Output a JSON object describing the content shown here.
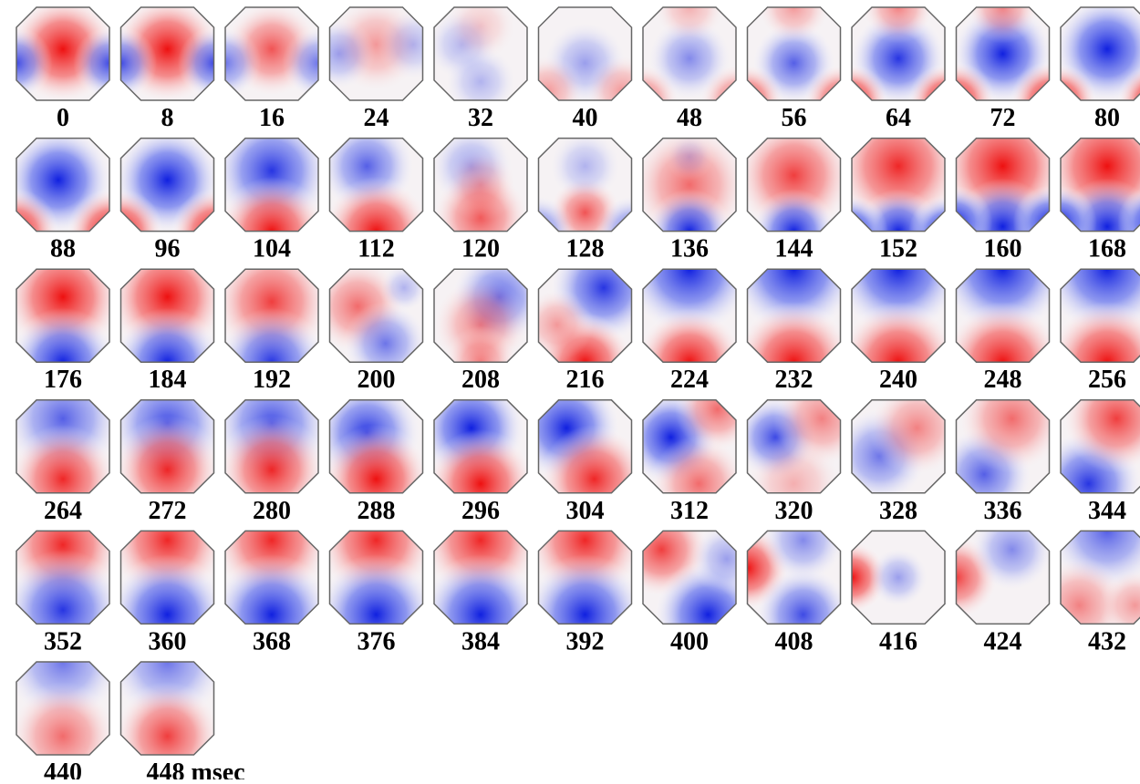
{
  "labels": [
    "0",
    "8",
    "16",
    "24",
    "32",
    "40",
    "48",
    "56",
    "64",
    "72",
    "80",
    "88",
    "96",
    "104",
    "112",
    "120",
    "128",
    "136",
    "144",
    "152",
    "160",
    "168",
    "176",
    "184",
    "192",
    "200",
    "208",
    "216",
    "224",
    "232",
    "240",
    "248",
    "256",
    "264",
    "272",
    "280",
    "288",
    "296",
    "304",
    "312",
    "320",
    "328",
    "336",
    "344",
    "352",
    "360",
    "368",
    "376",
    "384",
    "392",
    "400",
    "408",
    "416",
    "424",
    "432",
    "440",
    "448 msec"
  ]
}
